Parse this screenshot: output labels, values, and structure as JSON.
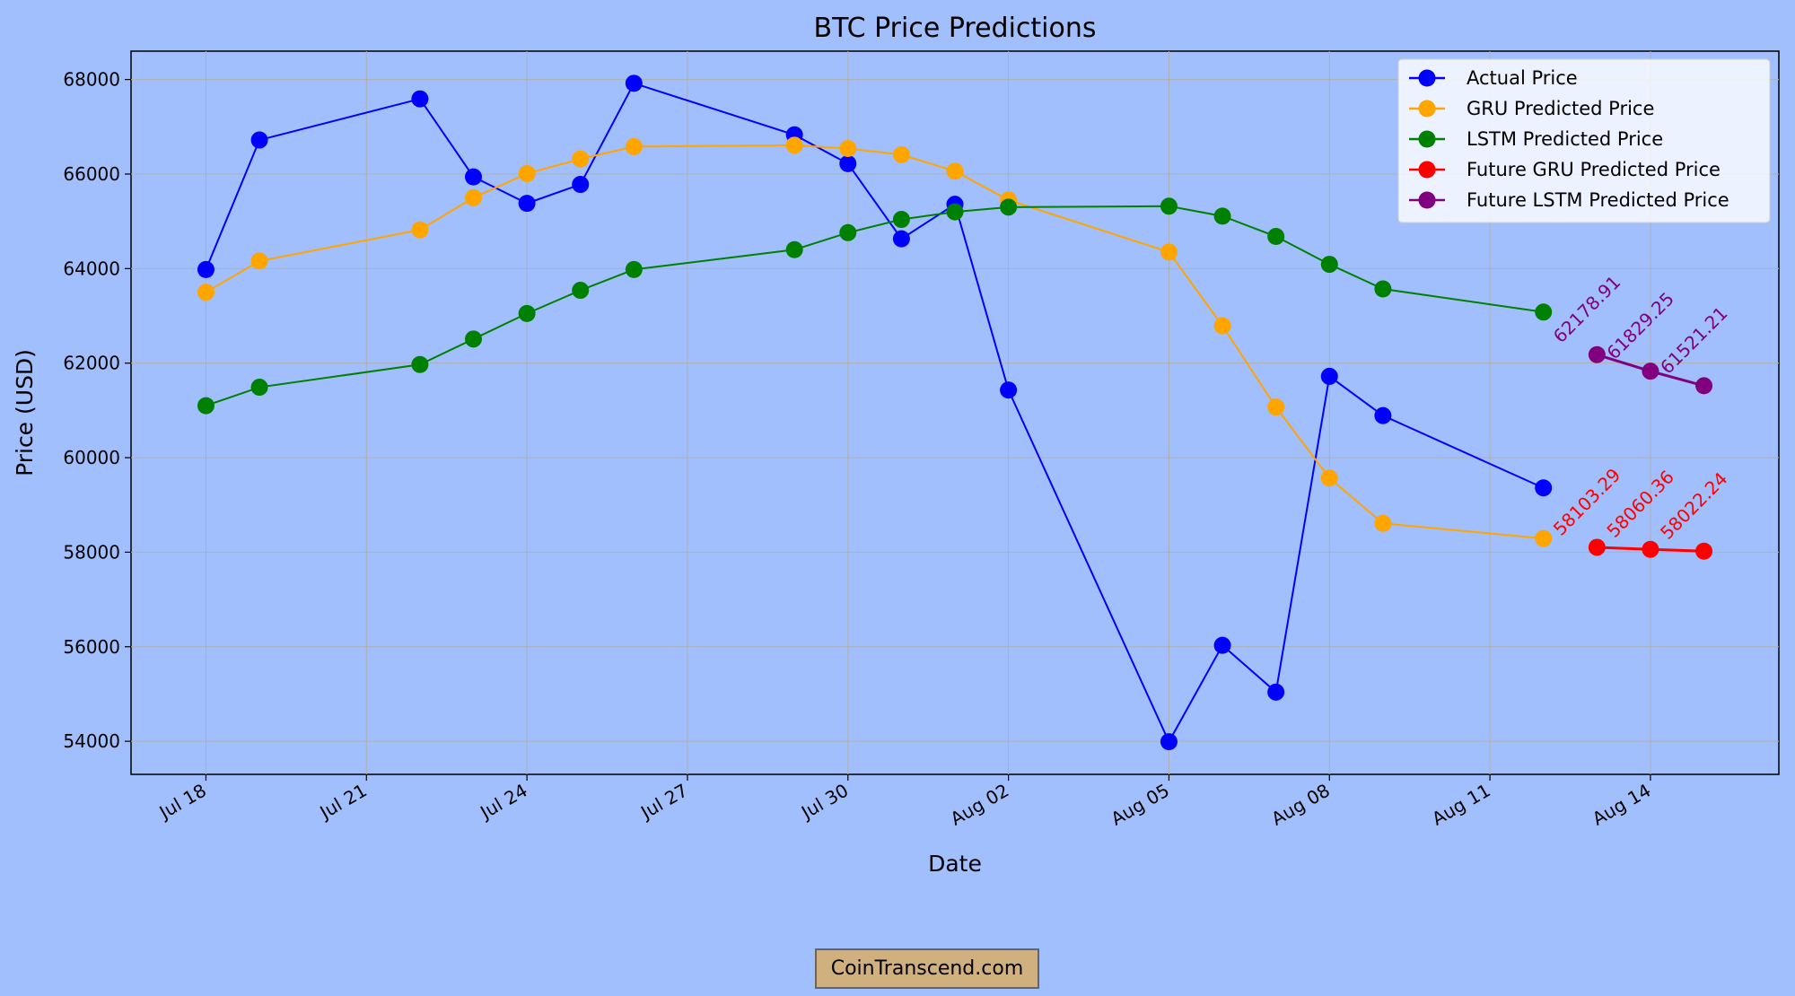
{
  "chart_data": {
    "type": "line",
    "title": "BTC Price Predictions",
    "xlabel": "Date",
    "ylabel": "Price (USD)",
    "grid": true,
    "legend_position": "top-right",
    "x_ticks": [
      "Jul 18",
      "Jul 21",
      "Jul 24",
      "Jul 27",
      "Jul 30",
      "Aug 02",
      "Aug 05",
      "Aug 08",
      "Aug 11",
      "Aug 14"
    ],
    "x_tick_dates": [
      "2024-07-18",
      "2024-07-21",
      "2024-07-24",
      "2024-07-27",
      "2024-07-30",
      "2024-08-02",
      "2024-08-05",
      "2024-08-08",
      "2024-08-11",
      "2024-08-14"
    ],
    "xlim": [
      "2024-07-16.6",
      "2024-08-16.4"
    ],
    "ylim": [
      53300,
      68600
    ],
    "y_ticks": [
      54000,
      56000,
      58000,
      60000,
      62000,
      64000,
      66000,
      68000
    ],
    "series": [
      {
        "name": "Actual Price",
        "color": "#0000ff",
        "x": [
          "2024-07-18",
          "2024-07-19",
          "2024-07-22",
          "2024-07-23",
          "2024-07-24",
          "2024-07-25",
          "2024-07-26",
          "2024-07-29",
          "2024-07-30",
          "2024-07-31",
          "2024-08-01",
          "2024-08-02",
          "2024-08-05",
          "2024-08-06",
          "2024-08-07",
          "2024-08-08",
          "2024-08-09",
          "2024-08-12"
        ],
        "y": [
          63980,
          66720,
          67590,
          65940,
          65380,
          65780,
          67920,
          66830,
          66220,
          64630,
          65360,
          61430,
          53990,
          56030,
          55040,
          61720,
          60890,
          59360
        ]
      },
      {
        "name": "GRU Predicted Price",
        "color": "#ffa500",
        "x": [
          "2024-07-18",
          "2024-07-19",
          "2024-07-22",
          "2024-07-23",
          "2024-07-24",
          "2024-07-25",
          "2024-07-26",
          "2024-07-29",
          "2024-07-30",
          "2024-07-31",
          "2024-08-01",
          "2024-08-02",
          "2024-08-05",
          "2024-08-06",
          "2024-08-07",
          "2024-08-08",
          "2024-08-09",
          "2024-08-12"
        ],
        "y": [
          63500,
          64160,
          64820,
          65500,
          66010,
          66320,
          66580,
          66610,
          66540,
          66410,
          66060,
          65450,
          64350,
          62790,
          61070,
          59570,
          58610,
          58290
        ]
      },
      {
        "name": "LSTM Predicted Price",
        "color": "#008000",
        "x": [
          "2024-07-18",
          "2024-07-19",
          "2024-07-22",
          "2024-07-23",
          "2024-07-24",
          "2024-07-25",
          "2024-07-26",
          "2024-07-29",
          "2024-07-30",
          "2024-07-31",
          "2024-08-01",
          "2024-08-02",
          "2024-08-05",
          "2024-08-06",
          "2024-08-07",
          "2024-08-08",
          "2024-08-09",
          "2024-08-12"
        ],
        "y": [
          61100,
          61490,
          61970,
          62510,
          63050,
          63540,
          63980,
          64400,
          64760,
          65040,
          65200,
          65300,
          65320,
          65110,
          64680,
          64090,
          63570,
          63080
        ]
      },
      {
        "name": "Future GRU Predicted Price",
        "color": "#ff0000",
        "x": [
          "2024-08-13",
          "2024-08-14",
          "2024-08-15"
        ],
        "y": [
          58103.29,
          58060.36,
          58022.24
        ],
        "labels": [
          "58103.29",
          "58060.36",
          "58022.24"
        ]
      },
      {
        "name": "Future LSTM Predicted Price",
        "color": "#800080",
        "x": [
          "2024-08-13",
          "2024-08-14",
          "2024-08-15"
        ],
        "y": [
          62178.91,
          61829.25,
          61521.21
        ],
        "labels": [
          "62178.91",
          "61829.25",
          "61521.21"
        ]
      }
    ]
  },
  "watermark": "CoinTranscend.com"
}
